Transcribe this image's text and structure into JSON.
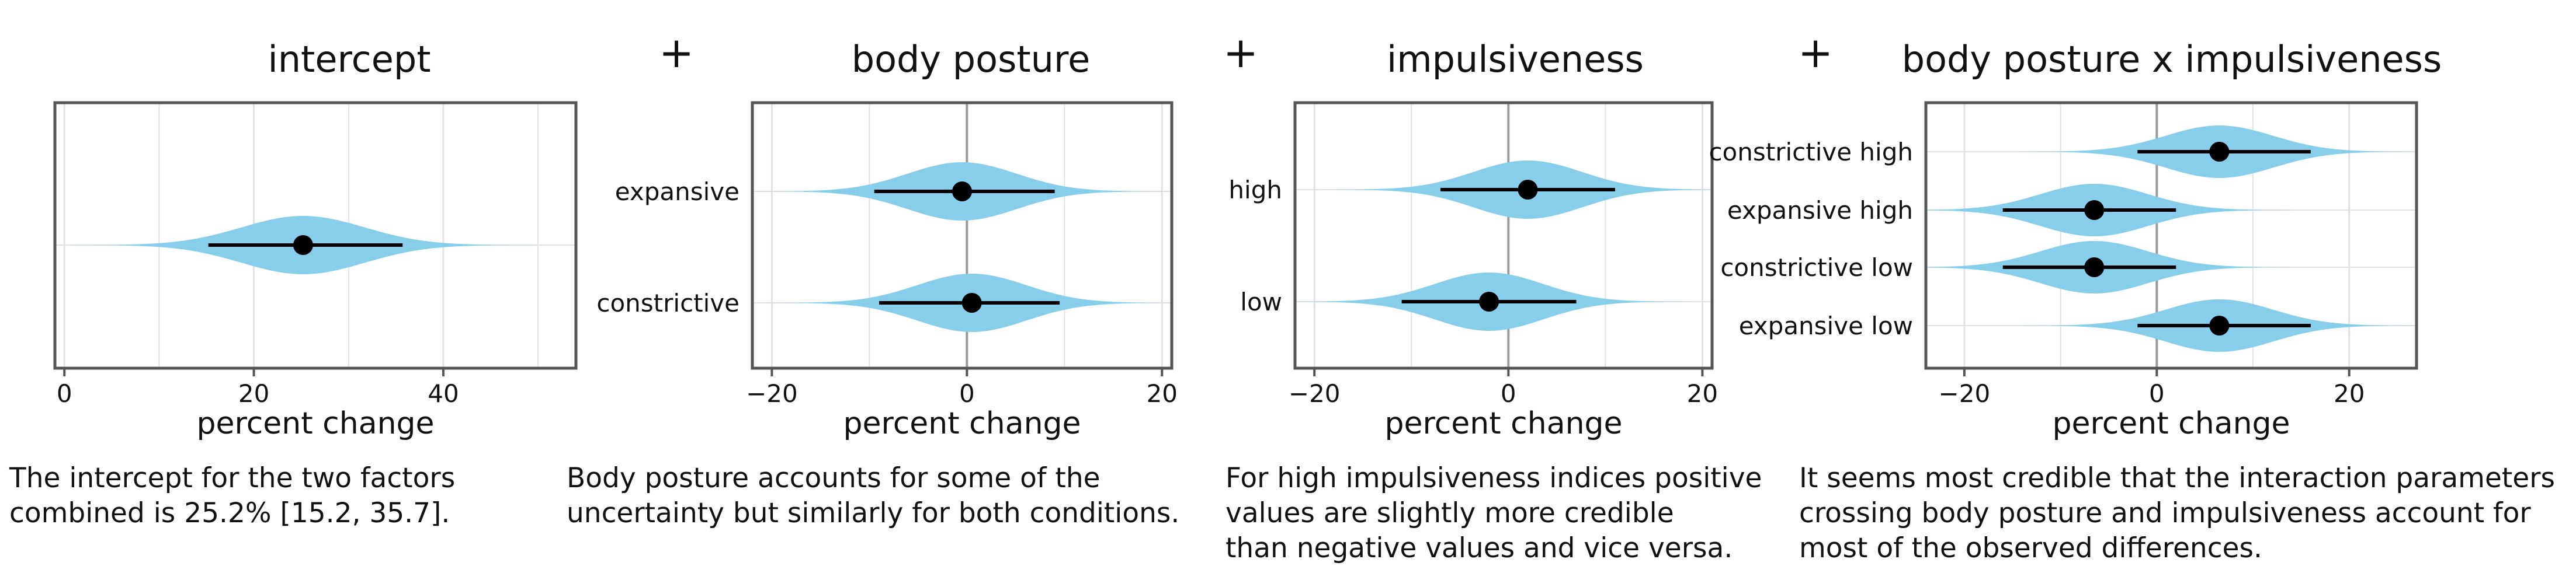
{
  "colors": {
    "violin": "#87ceeb",
    "interval": "#000000",
    "frame": "#555555",
    "grid_major": "#9a9a9a",
    "grid_minor": "#e2e2e2"
  },
  "operator_symbol": "+",
  "chart_data": [
    {
      "type": "violin",
      "title": "intercept",
      "xlabel": "percent change",
      "xlim": [
        -1,
        54
      ],
      "xticks": [
        0,
        20,
        40
      ],
      "categories": [],
      "series": [
        {
          "point": 25.2,
          "lower": 15.2,
          "upper": 35.7,
          "spread": 6.5
        }
      ],
      "caption": [
        "The intercept for the two factors",
        "combined is 25.2% [15.2, 35.7]."
      ]
    },
    {
      "type": "violin",
      "title": "body posture",
      "xlabel": "percent change",
      "xlim": [
        -22,
        21
      ],
      "xticks": [
        -20,
        0,
        20
      ],
      "categories": [
        "expansive",
        "constrictive"
      ],
      "series": [
        {
          "name": "expansive",
          "point": -0.5,
          "lower": -9.5,
          "upper": 9.0,
          "spread": 5.6
        },
        {
          "name": "constrictive",
          "point": 0.5,
          "lower": -9.0,
          "upper": 9.5,
          "spread": 5.6
        }
      ],
      "caption": [
        "Body posture accounts for some of the",
        "uncertainty but similarly for both conditions."
      ]
    },
    {
      "type": "violin",
      "title": "impulsiveness",
      "xlabel": "percent change",
      "xlim": [
        -22,
        21
      ],
      "xticks": [
        -20,
        0,
        20
      ],
      "categories": [
        "high",
        "low"
      ],
      "series": [
        {
          "name": "high",
          "point": 2.0,
          "lower": -7.0,
          "upper": 11.0,
          "spread": 5.6
        },
        {
          "name": "low",
          "point": -2.0,
          "lower": -11.0,
          "upper": 7.0,
          "spread": 5.6
        }
      ],
      "caption": [
        "For high impulsiveness indices positive",
        "values are slightly more credible",
        "than negative values and vice versa."
      ]
    },
    {
      "type": "violin",
      "title": "body posture x impulsiveness",
      "xlabel": "percent change",
      "xlim": [
        -24,
        27
      ],
      "xticks": [
        -20,
        0,
        20
      ],
      "categories": [
        "constrictive high",
        "expansive high",
        "constrictive low",
        "expansive low"
      ],
      "series": [
        {
          "name": "constrictive high",
          "point": 6.5,
          "lower": -2.0,
          "upper": 16.0,
          "spread": 5.6
        },
        {
          "name": "expansive high",
          "point": -6.5,
          "lower": -16.0,
          "upper": 2.0,
          "spread": 5.6
        },
        {
          "name": "constrictive low",
          "point": -6.5,
          "lower": -16.0,
          "upper": 2.0,
          "spread": 5.6
        },
        {
          "name": "expansive low",
          "point": 6.5,
          "lower": -2.0,
          "upper": 16.0,
          "spread": 5.6
        }
      ],
      "caption": [
        "It seems most credible that the interaction parameters",
        "crossing body posture and impulsiveness account for",
        "most of the observed differences."
      ]
    }
  ]
}
